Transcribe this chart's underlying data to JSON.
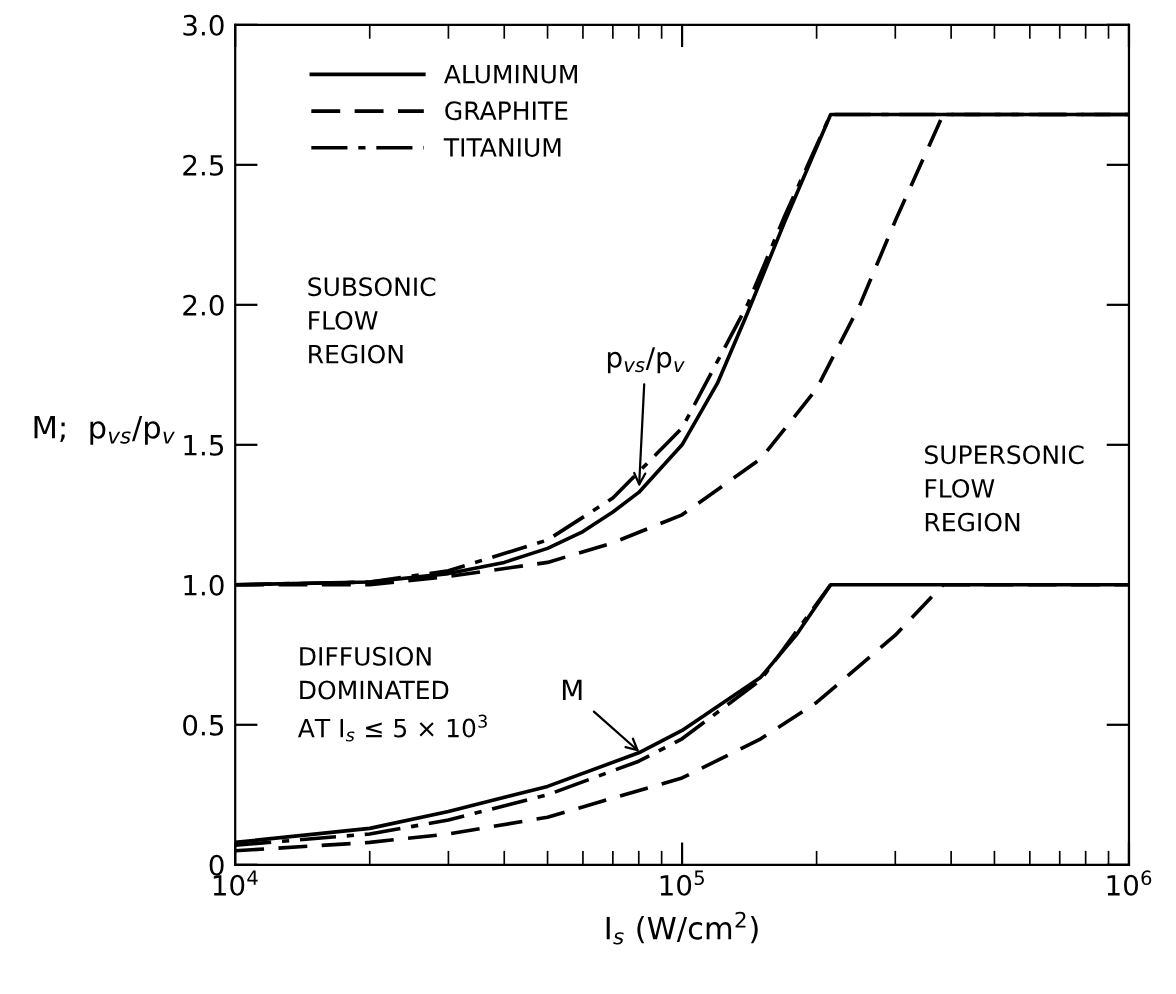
{
  "chart_data": {
    "type": "line",
    "xlabel": "I$_{s}$ (W/cm$^{2}$)",
    "ylabel": "M;  p$_{vs}$/p$_{v}$",
    "log": "x",
    "xlim": [
      10000,
      1000000
    ],
    "ylim": [
      0,
      3
    ],
    "xticks": [
      {
        "value": 10000,
        "label": "10$^{4}$"
      },
      {
        "value": 100000,
        "label": "10$^{5}$"
      },
      {
        "value": 1000000,
        "label": "10$^{6}$"
      }
    ],
    "yticks": [
      0,
      0.5,
      {
        "value": 1,
        "label": "1.0"
      },
      1.5,
      {
        "value": 2,
        "label": "2.0"
      },
      2.5,
      {
        "value": 3,
        "label": "3.0"
      }
    ],
    "grid": false,
    "legend": "top left",
    "marker": "none",
    "series": [
      {
        "name": "ALUMINUM",
        "color": "#000000",
        "line_style": "solid",
        "x": [
          10000,
          20000,
          30000,
          40000,
          50000,
          60000,
          70000,
          80000,
          100000,
          120000,
          140000,
          170000,
          215000,
          1000000
        ],
        "values": [
          1.0,
          1.01,
          1.04,
          1.08,
          1.13,
          1.19,
          1.26,
          1.33,
          1.5,
          1.72,
          1.97,
          2.3,
          2.68,
          2.68
        ]
      },
      {
        "name": "GRAPHITE",
        "color": "#000000",
        "line_style": "dashed",
        "x": [
          10000,
          20000,
          30000,
          50000,
          70000,
          100000,
          150000,
          200000,
          250000,
          300000,
          384000,
          1000000
        ],
        "values": [
          1.0,
          1.0,
          1.03,
          1.08,
          1.15,
          1.25,
          1.45,
          1.7,
          2.0,
          2.3,
          2.68,
          2.68
        ]
      },
      {
        "name": "TITANIUM",
        "color": "#000000",
        "line_style": "dashdot",
        "x": [
          10000,
          20000,
          30000,
          50000,
          70000,
          100000,
          140000,
          170000,
          215000,
          1000000
        ],
        "values": [
          1.0,
          1.01,
          1.05,
          1.16,
          1.31,
          1.56,
          2.0,
          2.32,
          2.68,
          2.68
        ]
      },
      {
        "color": "#000000",
        "line_style": "solid",
        "x": [
          10000,
          20000,
          30000,
          50000,
          80000,
          100000,
          150000,
          180000,
          215000,
          1000000
        ],
        "values": [
          0.08,
          0.13,
          0.19,
          0.28,
          0.4,
          0.48,
          0.67,
          0.82,
          1.0,
          1.0
        ]
      },
      {
        "color": "#000000",
        "line_style": "dashed",
        "x": [
          10000,
          20000,
          30000,
          50000,
          100000,
          150000,
          200000,
          300000,
          384000,
          1000000
        ],
        "values": [
          0.05,
          0.08,
          0.11,
          0.17,
          0.31,
          0.45,
          0.58,
          0.82,
          1.0,
          1.0
        ]
      },
      {
        "color": "#000000",
        "line_style": "dashdot",
        "x": [
          10000,
          20000,
          30000,
          50000,
          80000,
          100000,
          150000,
          215000
        ],
        "values": [
          0.07,
          0.11,
          0.16,
          0.25,
          0.37,
          0.45,
          0.66,
          1.0
        ]
      }
    ],
    "annotations": [
      "SUBSONIC\nFLOW\nREGION",
      "SUPERSONIC\nFLOW\nREGION",
      "DIFFUSION\nDOMINATED\nAT I$_{s}$ ≤ 5 × 10$^{3}$",
      {
        "text": "p$_{vs}$/p$_{v}$",
        "x": 80000,
        "y": 1.33
      },
      {
        "text": "M",
        "x": 82000,
        "y": 0.39
      }
    ]
  }
}
